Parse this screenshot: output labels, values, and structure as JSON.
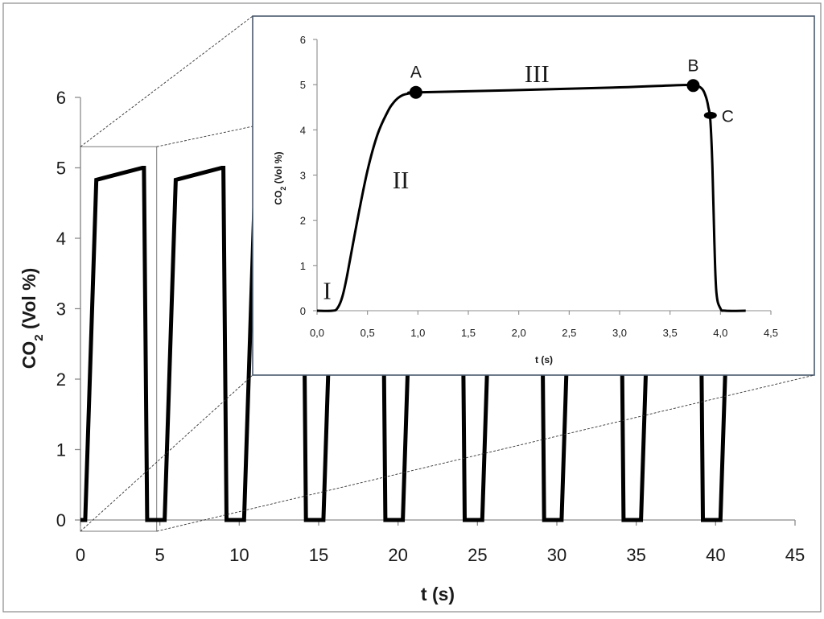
{
  "chart_data": [
    {
      "type": "line",
      "panel": "main",
      "xlabel": "t (s)",
      "ylabel_main": "CO",
      "ylabel_sub": "2",
      "ylabel_rest": " (Vol %)",
      "xlim": [
        0,
        45
      ],
      "ylim": [
        0,
        6
      ],
      "x_ticks": [
        0,
        5,
        10,
        15,
        20,
        25,
        30,
        35,
        40,
        45
      ],
      "y_ticks": [
        0,
        1,
        2,
        3,
        4,
        5,
        6
      ],
      "x_tick_labels": [
        "0",
        "5",
        "10",
        "15",
        "20",
        "25",
        "30",
        "35",
        "40",
        "45"
      ],
      "y_tick_labels": [
        "0",
        "1",
        "2",
        "3",
        "4",
        "5",
        "6"
      ],
      "grid": false,
      "series": [
        {
          "color": "#000000",
          "x": [
            0,
            0.3,
            1.0,
            3.9,
            4.0,
            4.2,
            5.3,
            6.0,
            8.9,
            9.0,
            9.2,
            10.3,
            11.0,
            13.9,
            14.0,
            14.2,
            15.3,
            16.0,
            18.9,
            19.0,
            19.2,
            20.3,
            21.0,
            23.9,
            24.0,
            24.2,
            25.3,
            26.0,
            28.9,
            29.0,
            29.2,
            30.3,
            31.0,
            33.9,
            34.0,
            34.2,
            35.3,
            36.0,
            38.9,
            39.0,
            39.2,
            40.3,
            41.0
          ],
          "y": [
            0,
            0,
            4.83,
            5.0,
            5.0,
            0,
            0,
            4.83,
            5.0,
            5.0,
            0,
            0,
            4.83,
            5.0,
            5.0,
            0,
            0,
            4.83,
            5.0,
            5.0,
            0,
            0,
            4.83,
            5.0,
            5.0,
            0,
            0,
            4.83,
            5.0,
            5.0,
            0,
            0,
            4.83,
            5.0,
            5.0,
            0,
            0,
            4.83,
            5.0,
            5.0,
            0,
            0,
            4.83
          ]
        }
      ],
      "zoom_box": {
        "x": [
          0,
          4.8
        ],
        "y": [
          0,
          5.3
        ]
      }
    },
    {
      "type": "line",
      "panel": "inset",
      "xlabel": "t (s)",
      "ylabel_main": "CO",
      "ylabel_sub": "2",
      "ylabel_rest": " (Vol %)",
      "xlim": [
        0,
        4.5
      ],
      "ylim": [
        0,
        6
      ],
      "x_ticks": [
        0,
        0.5,
        1.0,
        1.5,
        2.0,
        2.5,
        3.0,
        3.5,
        4.0,
        4.5
      ],
      "y_ticks": [
        0,
        1,
        2,
        3,
        4,
        5,
        6
      ],
      "x_tick_labels": [
        "0,0",
        "0,5",
        "1,0",
        "1,5",
        "2,0",
        "2,5",
        "3,0",
        "3,5",
        "4,0",
        "4,5"
      ],
      "y_tick_labels": [
        "0",
        "1",
        "2",
        "3",
        "4",
        "5",
        "6"
      ],
      "grid": false,
      "series": [
        {
          "color": "#000000",
          "x": [
            0,
            0.15,
            0.2,
            0.25,
            0.3,
            0.4,
            0.5,
            0.6,
            0.7,
            0.75,
            0.8,
            0.85,
            0.9,
            0.95,
            1.0,
            2.0,
            3.0,
            3.6,
            3.75,
            3.82,
            3.86,
            3.88,
            3.9,
            3.92,
            3.94,
            3.96,
            4.0,
            4.05,
            4.25
          ],
          "y": [
            0,
            0,
            0.05,
            0.3,
            0.8,
            2.0,
            3.1,
            3.9,
            4.4,
            4.58,
            4.7,
            4.77,
            4.8,
            4.82,
            4.83,
            4.88,
            4.94,
            4.99,
            4.98,
            4.9,
            4.7,
            4.5,
            4.2,
            3.2,
            1.5,
            0.4,
            0.05,
            0,
            0
          ]
        }
      ],
      "points": [
        {
          "label": "A",
          "x": 0.98,
          "y": 4.83
        },
        {
          "label": "B",
          "x": 3.73,
          "y": 4.98
        },
        {
          "label": "C",
          "x": 3.9,
          "y": 4.32
        }
      ],
      "phases": [
        {
          "label": "I",
          "x": 0.1,
          "y": 0.45
        },
        {
          "label": "II",
          "x": 0.83,
          "y": 2.9
        },
        {
          "label": "III",
          "x": 2.18,
          "y": 5.25
        }
      ]
    }
  ]
}
